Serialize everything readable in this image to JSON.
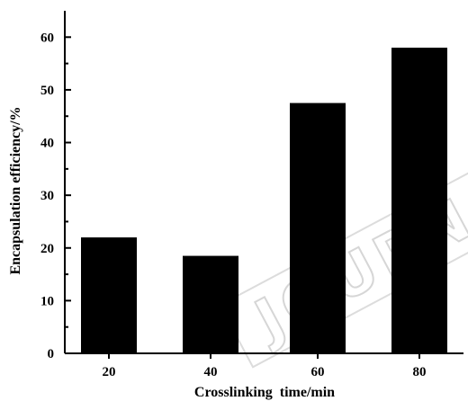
{
  "chart_data": {
    "type": "bar",
    "categories": [
      "20",
      "40",
      "60",
      "80"
    ],
    "values": [
      22,
      18.5,
      47.5,
      58
    ],
    "xlabel": "Crosslinking  time/min",
    "ylabel": "Encapsulation efficiency/%",
    "ylim": [
      0,
      65
    ],
    "yticks": [
      "0",
      "10",
      "20",
      "30",
      "40",
      "50",
      "60"
    ],
    "bar_color": "#000000",
    "grid": false,
    "legend": "none"
  },
  "watermark_text": "JOURNAL"
}
